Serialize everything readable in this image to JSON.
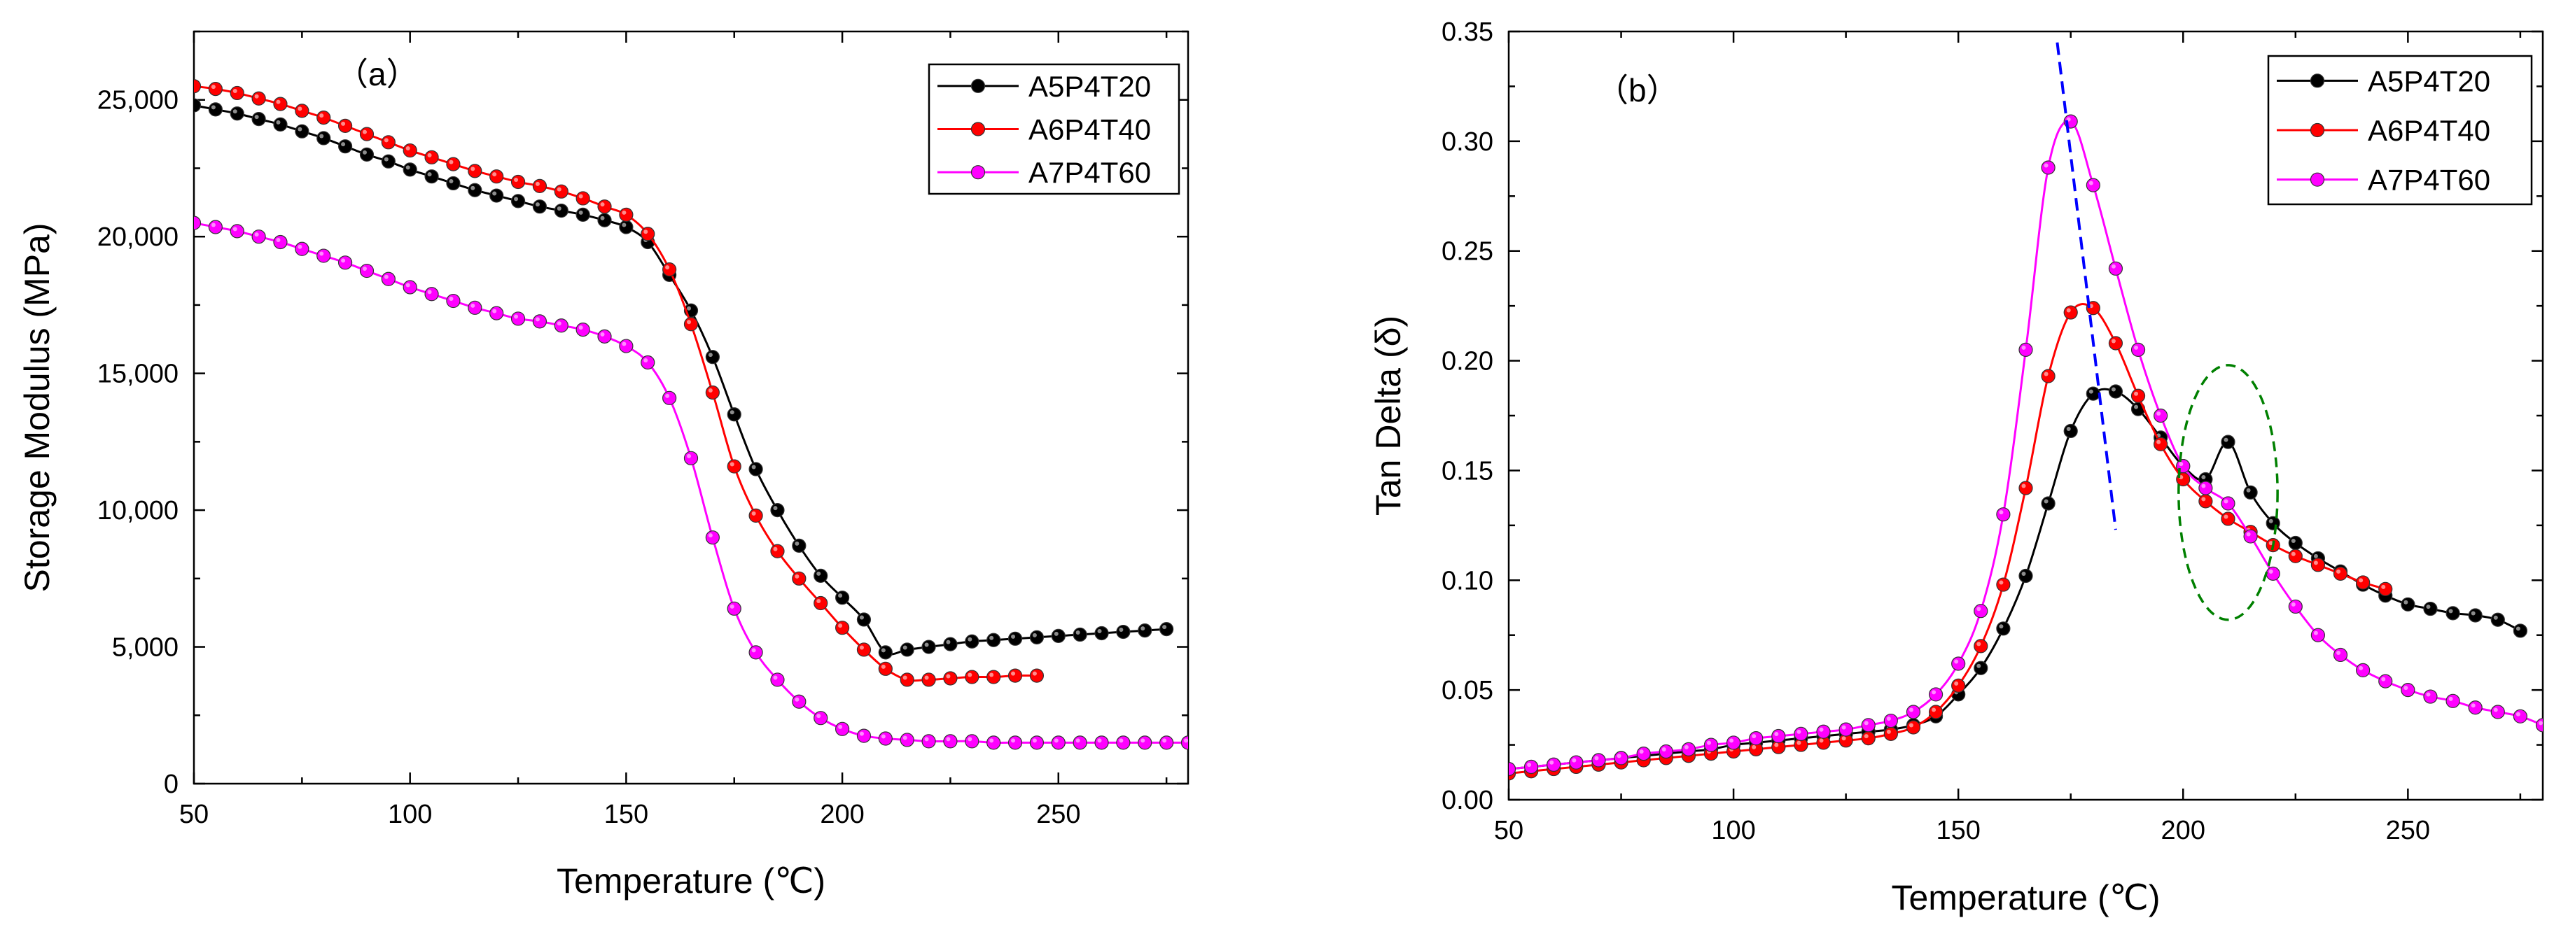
{
  "chart_data": [
    {
      "type": "line",
      "panel_label": "（a）",
      "xlabel": "Temperature (℃)",
      "ylabel": "Storage Modulus (MPa)",
      "xlim": [
        50,
        280
      ],
      "ylim": [
        0,
        27500
      ],
      "xticks": [
        50,
        100,
        150,
        200,
        250
      ],
      "yticks": [
        0,
        5000,
        10000,
        15000,
        20000,
        25000
      ],
      "xtick_labels": [
        "50",
        "100",
        "150",
        "200",
        "250"
      ],
      "ytick_labels": [
        "0",
        "5,000",
        "10,000",
        "15,000",
        "20,000",
        "25,000"
      ],
      "legend_position": "top-right",
      "series": [
        {
          "name": "A5P4T20",
          "color": "#000000",
          "x": [
            50,
            55,
            60,
            65,
            70,
            75,
            80,
            85,
            90,
            95,
            100,
            105,
            110,
            115,
            120,
            125,
            130,
            135,
            140,
            145,
            150,
            155,
            160,
            165,
            170,
            175,
            180,
            185,
            190,
            195,
            200,
            205,
            210,
            215,
            220,
            225,
            230,
            235,
            240,
            245,
            250,
            255,
            260,
            265,
            270,
            275
          ],
          "y": [
            24800,
            24650,
            24500,
            24300,
            24100,
            23850,
            23600,
            23300,
            23000,
            22750,
            22450,
            22200,
            21950,
            21700,
            21500,
            21300,
            21100,
            20950,
            20800,
            20600,
            20350,
            19800,
            18600,
            17300,
            15600,
            13500,
            11500,
            10000,
            8700,
            7600,
            6800,
            6000,
            4800,
            4900,
            5000,
            5100,
            5200,
            5250,
            5300,
            5350,
            5400,
            5450,
            5500,
            5550,
            5600,
            5650
          ]
        },
        {
          "name": "A6P4T40",
          "color": "#ff0000",
          "x": [
            50,
            55,
            60,
            65,
            70,
            75,
            80,
            85,
            90,
            95,
            100,
            105,
            110,
            115,
            120,
            125,
            130,
            135,
            140,
            145,
            150,
            155,
            160,
            165,
            170,
            175,
            180,
            185,
            190,
            195,
            200,
            205,
            210,
            215,
            220,
            225,
            230,
            235,
            240,
            245
          ],
          "y": [
            25500,
            25400,
            25250,
            25050,
            24850,
            24600,
            24350,
            24050,
            23750,
            23450,
            23150,
            22900,
            22650,
            22400,
            22200,
            22000,
            21850,
            21650,
            21400,
            21100,
            20800,
            20100,
            18800,
            16800,
            14300,
            11600,
            9800,
            8500,
            7500,
            6600,
            5700,
            4900,
            4200,
            3800,
            3800,
            3850,
            3900,
            3900,
            3950,
            3950
          ]
        },
        {
          "name": "A7P4T60",
          "color": "#ff00ff",
          "x": [
            50,
            55,
            60,
            65,
            70,
            75,
            80,
            85,
            90,
            95,
            100,
            105,
            110,
            115,
            120,
            125,
            130,
            135,
            140,
            145,
            150,
            155,
            160,
            165,
            170,
            175,
            180,
            185,
            190,
            195,
            200,
            205,
            210,
            215,
            220,
            225,
            230,
            235,
            240,
            245,
            250,
            255,
            260,
            265,
            270,
            275,
            280
          ],
          "y": [
            20500,
            20350,
            20200,
            20000,
            19800,
            19550,
            19300,
            19050,
            18750,
            18450,
            18150,
            17900,
            17650,
            17400,
            17200,
            17000,
            16900,
            16750,
            16600,
            16350,
            16000,
            15400,
            14100,
            11900,
            9000,
            6400,
            4800,
            3800,
            3000,
            2400,
            2000,
            1750,
            1650,
            1600,
            1550,
            1550,
            1550,
            1500,
            1500,
            1500,
            1500,
            1500,
            1500,
            1500,
            1500,
            1500,
            1500
          ]
        }
      ]
    },
    {
      "type": "line",
      "panel_label": "（b）",
      "xlabel": "Temperature (℃)",
      "ylabel": "Tan Delta (δ)",
      "xlim": [
        50,
        280
      ],
      "ylim": [
        0.0,
        0.35
      ],
      "xticks": [
        50,
        100,
        150,
        200,
        250
      ],
      "yticks": [
        0.0,
        0.05,
        0.1,
        0.15,
        0.2,
        0.25,
        0.3,
        0.35
      ],
      "xtick_labels": [
        "50",
        "100",
        "150",
        "200",
        "250"
      ],
      "ytick_labels": [
        "0.00",
        "0.05",
        "0.10",
        "0.15",
        "0.20",
        "0.25",
        "0.30",
        "0.35"
      ],
      "legend_position": "top-right",
      "annotations": [
        {
          "type": "dashed-line",
          "color": "#0000ff",
          "from": [
            172,
            0.345
          ],
          "to": [
            185,
            0.123
          ]
        },
        {
          "type": "dashed-ellipse",
          "color": "#008000",
          "center": [
            210,
            0.14
          ],
          "radius": [
            11,
            0.058
          ]
        }
      ],
      "series": [
        {
          "name": "A5P4T20",
          "color": "#000000",
          "x": [
            50,
            55,
            60,
            65,
            70,
            75,
            80,
            85,
            90,
            95,
            100,
            105,
            110,
            115,
            120,
            125,
            130,
            135,
            140,
            145,
            150,
            155,
            160,
            165,
            170,
            175,
            180,
            185,
            190,
            195,
            200,
            205,
            210,
            215,
            220,
            225,
            230,
            235,
            240,
            245,
            250,
            255,
            260,
            265,
            270,
            275
          ],
          "y": [
            0.014,
            0.015,
            0.016,
            0.017,
            0.018,
            0.019,
            0.02,
            0.021,
            0.022,
            0.023,
            0.025,
            0.026,
            0.027,
            0.028,
            0.029,
            0.03,
            0.031,
            0.032,
            0.034,
            0.038,
            0.048,
            0.06,
            0.078,
            0.102,
            0.135,
            0.168,
            0.185,
            0.186,
            0.178,
            0.165,
            0.152,
            0.146,
            0.163,
            0.14,
            0.126,
            0.117,
            0.11,
            0.104,
            0.098,
            0.093,
            0.089,
            0.087,
            0.085,
            0.084,
            0.082,
            0.077
          ]
        },
        {
          "name": "A6P4T40",
          "color": "#ff0000",
          "x": [
            50,
            55,
            60,
            65,
            70,
            75,
            80,
            85,
            90,
            95,
            100,
            105,
            110,
            115,
            120,
            125,
            130,
            135,
            140,
            145,
            150,
            155,
            160,
            165,
            170,
            175,
            180,
            185,
            190,
            195,
            200,
            205,
            210,
            215,
            220,
            225,
            230,
            235,
            240,
            245
          ],
          "y": [
            0.012,
            0.013,
            0.014,
            0.015,
            0.016,
            0.017,
            0.018,
            0.019,
            0.02,
            0.021,
            0.022,
            0.023,
            0.024,
            0.025,
            0.026,
            0.027,
            0.028,
            0.03,
            0.033,
            0.04,
            0.052,
            0.07,
            0.098,
            0.142,
            0.193,
            0.222,
            0.224,
            0.208,
            0.184,
            0.162,
            0.146,
            0.136,
            0.128,
            0.122,
            0.116,
            0.111,
            0.107,
            0.103,
            0.099,
            0.096
          ]
        },
        {
          "name": "A7P4T60",
          "color": "#ff00ff",
          "x": [
            50,
            55,
            60,
            65,
            70,
            75,
            80,
            85,
            90,
            95,
            100,
            105,
            110,
            115,
            120,
            125,
            130,
            135,
            140,
            145,
            150,
            155,
            160,
            165,
            170,
            175,
            180,
            185,
            190,
            195,
            200,
            205,
            210,
            215,
            220,
            225,
            230,
            235,
            240,
            245,
            250,
            255,
            260,
            265,
            270,
            275,
            280
          ],
          "y": [
            0.014,
            0.015,
            0.016,
            0.017,
            0.018,
            0.019,
            0.021,
            0.022,
            0.023,
            0.025,
            0.026,
            0.028,
            0.029,
            0.03,
            0.031,
            0.032,
            0.034,
            0.036,
            0.04,
            0.048,
            0.062,
            0.086,
            0.13,
            0.205,
            0.288,
            0.309,
            0.28,
            0.242,
            0.205,
            0.175,
            0.152,
            0.142,
            0.135,
            0.12,
            0.103,
            0.088,
            0.075,
            0.066,
            0.059,
            0.054,
            0.05,
            0.047,
            0.045,
            0.042,
            0.04,
            0.038,
            0.034
          ]
        }
      ]
    }
  ]
}
